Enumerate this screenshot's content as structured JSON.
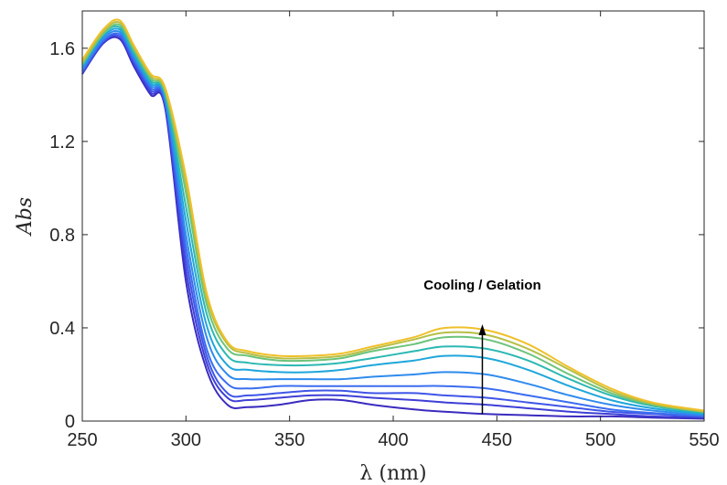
{
  "chart_data": {
    "type": "line",
    "xlabel": "λ (nm)",
    "ylabel": "Abs",
    "xlim": [
      250,
      550
    ],
    "ylim": [
      0,
      1.76
    ],
    "xticks": [
      250,
      300,
      350,
      400,
      450,
      500,
      550
    ],
    "yticks": [
      0,
      0.4,
      0.8,
      1.2,
      1.6
    ],
    "ytick_labels": [
      "0",
      "0.4",
      "0.8",
      "1.2",
      "1.6"
    ],
    "grid": false,
    "annotation": {
      "text": "Cooling / Gelation",
      "arrow": {
        "x": 443,
        "y_start": 0.03,
        "y_end": 0.4
      }
    },
    "series": [
      {
        "color": "#3a2bbf",
        "values": [
          1.49,
          1.62,
          1.64,
          1.52,
          1.4,
          1.34,
          0.6,
          0.22,
          0.07,
          0.06,
          0.07,
          0.09,
          0.09,
          0.07,
          0.05,
          0.04,
          0.03,
          0.025,
          0.02,
          0.02,
          0.015,
          0.01
        ]
      },
      {
        "color": "#3e3fd6",
        "values": [
          1.49,
          1.62,
          1.65,
          1.53,
          1.41,
          1.35,
          0.65,
          0.25,
          0.1,
          0.09,
          0.1,
          0.11,
          0.11,
          0.1,
          0.09,
          0.08,
          0.07,
          0.055,
          0.04,
          0.03,
          0.02,
          0.015
        ]
      },
      {
        "color": "#3f55e8",
        "values": [
          1.5,
          1.63,
          1.65,
          1.54,
          1.42,
          1.36,
          0.7,
          0.28,
          0.12,
          0.11,
          0.12,
          0.13,
          0.13,
          0.12,
          0.12,
          0.11,
          0.1,
          0.08,
          0.06,
          0.04,
          0.03,
          0.02
        ]
      },
      {
        "color": "#3b6df0",
        "values": [
          1.5,
          1.63,
          1.66,
          1.55,
          1.43,
          1.37,
          0.75,
          0.31,
          0.16,
          0.14,
          0.15,
          0.15,
          0.15,
          0.15,
          0.15,
          0.15,
          0.14,
          0.11,
          0.08,
          0.05,
          0.035,
          0.02
        ]
      },
      {
        "color": "#2f8bed",
        "values": [
          1.51,
          1.64,
          1.67,
          1.56,
          1.44,
          1.38,
          0.8,
          0.36,
          0.2,
          0.18,
          0.18,
          0.18,
          0.18,
          0.19,
          0.2,
          0.21,
          0.2,
          0.16,
          0.11,
          0.07,
          0.045,
          0.025
        ]
      },
      {
        "color": "#1fa6db",
        "values": [
          1.52,
          1.65,
          1.68,
          1.57,
          1.45,
          1.39,
          0.86,
          0.41,
          0.24,
          0.22,
          0.21,
          0.21,
          0.22,
          0.24,
          0.26,
          0.28,
          0.27,
          0.22,
          0.15,
          0.09,
          0.055,
          0.03
        ]
      },
      {
        "color": "#2bb8b2",
        "values": [
          1.53,
          1.66,
          1.69,
          1.58,
          1.46,
          1.4,
          0.92,
          0.46,
          0.28,
          0.25,
          0.24,
          0.24,
          0.25,
          0.27,
          0.3,
          0.32,
          0.31,
          0.26,
          0.18,
          0.11,
          0.065,
          0.035
        ]
      },
      {
        "color": "#6cc37a",
        "values": [
          1.53,
          1.66,
          1.7,
          1.59,
          1.47,
          1.41,
          0.98,
          0.5,
          0.31,
          0.28,
          0.26,
          0.26,
          0.27,
          0.3,
          0.33,
          0.36,
          0.35,
          0.29,
          0.2,
          0.12,
          0.07,
          0.04
        ]
      },
      {
        "color": "#b6bf45",
        "values": [
          1.54,
          1.67,
          1.71,
          1.6,
          1.48,
          1.42,
          1.02,
          0.53,
          0.33,
          0.29,
          0.27,
          0.27,
          0.28,
          0.31,
          0.35,
          0.38,
          0.37,
          0.31,
          0.22,
          0.13,
          0.075,
          0.04
        ]
      },
      {
        "color": "#f0c029",
        "values": [
          1.55,
          1.68,
          1.72,
          1.61,
          1.49,
          1.43,
          1.05,
          0.55,
          0.34,
          0.3,
          0.28,
          0.28,
          0.29,
          0.32,
          0.36,
          0.4,
          0.39,
          0.33,
          0.23,
          0.14,
          0.08,
          0.045
        ]
      }
    ],
    "x": [
      250,
      260,
      268,
      275,
      283,
      290,
      300,
      310,
      320,
      330,
      345,
      360,
      375,
      390,
      410,
      425,
      445,
      465,
      485,
      505,
      525,
      550
    ]
  }
}
